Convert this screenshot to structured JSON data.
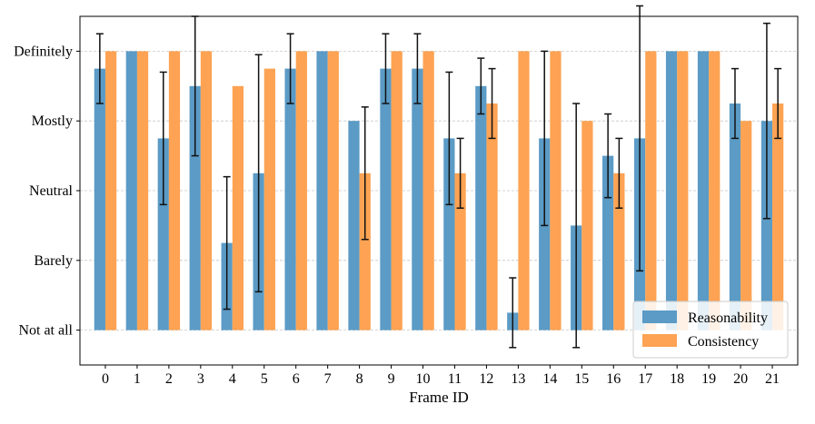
{
  "chart_data": {
    "type": "bar",
    "title": "",
    "xlabel": "Frame ID",
    "ylabel": "",
    "categories": [
      "0",
      "1",
      "2",
      "3",
      "4",
      "5",
      "6",
      "7",
      "8",
      "9",
      "10",
      "11",
      "12",
      "13",
      "14",
      "15",
      "16",
      "17",
      "18",
      "19",
      "20",
      "21"
    ],
    "y_tick_labels": [
      "Not at all",
      "Barely",
      "Neutral",
      "Mostly",
      "Definitely"
    ],
    "ylim": [
      -0.5,
      4.5
    ],
    "grid": "y-dashed",
    "legend_position": "bottom-right",
    "series": [
      {
        "name": "Reasonability",
        "color": "#5b9bc6",
        "values": [
          3.75,
          4.0,
          2.75,
          3.5,
          1.25,
          2.25,
          3.75,
          4.0,
          3.0,
          3.75,
          3.75,
          2.75,
          3.5,
          0.25,
          2.75,
          1.5,
          2.5,
          2.75,
          4.0,
          4.0,
          3.25,
          3.0
        ],
        "errors": [
          0.5,
          0.0,
          0.95,
          1.0,
          0.95,
          1.7,
          0.5,
          0.0,
          0.0,
          0.5,
          0.5,
          0.95,
          0.4,
          0.5,
          1.25,
          1.75,
          0.6,
          1.9,
          0.0,
          0.0,
          0.5,
          1.4
        ]
      },
      {
        "name": "Consistency",
        "color": "#fda353",
        "values": [
          4.0,
          4.0,
          4.0,
          4.0,
          3.5,
          3.75,
          4.0,
          4.0,
          2.25,
          4.0,
          4.0,
          2.25,
          3.25,
          4.0,
          4.0,
          3.0,
          2.25,
          4.0,
          4.0,
          4.0,
          3.0,
          3.25
        ],
        "errors": [
          0.0,
          0.0,
          0.0,
          0.0,
          0.0,
          0.0,
          0.0,
          0.0,
          0.95,
          0.0,
          0.0,
          0.5,
          0.5,
          0.0,
          0.0,
          0.0,
          0.5,
          0.0,
          0.0,
          0.0,
          0.0,
          0.5
        ]
      }
    ]
  }
}
